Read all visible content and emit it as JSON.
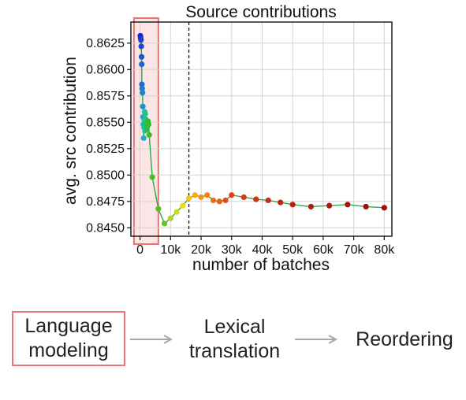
{
  "chart_data": {
    "type": "line",
    "title": "Source contributions",
    "xlabel": "number of batches",
    "ylabel": "avg. src contribution",
    "xlim": [
      -3000,
      82500
    ],
    "ylim": [
      0.8442,
      0.8645
    ],
    "xticks": [
      0,
      10000,
      20000,
      30000,
      40000,
      50000,
      60000,
      70000,
      80000
    ],
    "xtick_labels": [
      "0",
      "10k",
      "20k",
      "30k",
      "40k",
      "50k",
      "60k",
      "70k",
      "80k"
    ],
    "yticks": [
      0.845,
      0.8475,
      0.85,
      0.8525,
      0.855,
      0.8575,
      0.86,
      0.8625
    ],
    "ytick_labels": [
      "0.8450",
      "0.8475",
      "0.8500",
      "0.8525",
      "0.8550",
      "0.8575",
      "0.8600",
      "0.8625"
    ],
    "grid": true,
    "vline_x": 16000,
    "highlight_x_range": [
      -2000,
      6000
    ],
    "series": [
      {
        "x": [
          100,
          200,
          300,
          400,
          500,
          550,
          600,
          700,
          800,
          900,
          1000,
          1100,
          1200,
          1300,
          1400,
          1500,
          1600,
          1700,
          1800,
          1900,
          2000,
          2100,
          2200,
          2400,
          2600,
          2800,
          3000,
          4000,
          6000,
          8000,
          10000,
          12000,
          14000,
          16000,
          18000,
          20000,
          22000,
          24000,
          26000,
          28000,
          30000,
          34000,
          38000,
          42000,
          46000,
          50000,
          56000,
          62000,
          68000,
          74000,
          80000
        ],
        "y": [
          0.8632,
          0.863,
          0.8628,
          0.8622,
          0.8612,
          0.8605,
          0.8586,
          0.8582,
          0.8578,
          0.8565,
          0.8555,
          0.8548,
          0.8535,
          0.8545,
          0.8552,
          0.856,
          0.8542,
          0.8558,
          0.8553,
          0.855,
          0.8548,
          0.8545,
          0.8543,
          0.8546,
          0.8551,
          0.8548,
          0.8538,
          0.8498,
          0.8468,
          0.8454,
          0.8459,
          0.8465,
          0.8471,
          0.8478,
          0.8481,
          0.8479,
          0.8481,
          0.8476,
          0.8475,
          0.8476,
          0.8481,
          0.8479,
          0.8477,
          0.8476,
          0.8474,
          0.8472,
          0.847,
          0.8471,
          0.8472,
          0.847,
          0.8469
        ],
        "colors": [
          "#1b24d0",
          "#1b2ad0",
          "#1a3ccf",
          "#1a48cf",
          "#1a55cf",
          "#1a62cf",
          "#1c6dcf",
          "#1f79cf",
          "#2283cf",
          "#2390cf",
          "#239ccf",
          "#23a7cf",
          "#23b2cf",
          "#23b8c4",
          "#23bfb8",
          "#23c2ab",
          "#23c39d",
          "#23c38f",
          "#23c27f",
          "#23c170",
          "#23c062",
          "#24bf55",
          "#26be49",
          "#2bbd40",
          "#31bc38",
          "#39bb31",
          "#43ba2a",
          "#4fbb25",
          "#5bbc22",
          "#69be20",
          "#b8d120",
          "#d6d61f",
          "#f0d81c",
          "#f5c21a",
          "#f7aa18",
          "#f89318",
          "#f87e18",
          "#f26b17",
          "#ec5c16",
          "#e44d15",
          "#df4313",
          "#d83a12",
          "#d13310",
          "#c92c0f",
          "#c3260e",
          "#bb200d",
          "#b31b0c",
          "#ad170b",
          "#a7140a",
          "#a0110a",
          "#990f09"
        ]
      }
    ]
  },
  "flow": {
    "step1": "Language modeling",
    "step2": "Lexical translation",
    "step3": "Reordering"
  }
}
